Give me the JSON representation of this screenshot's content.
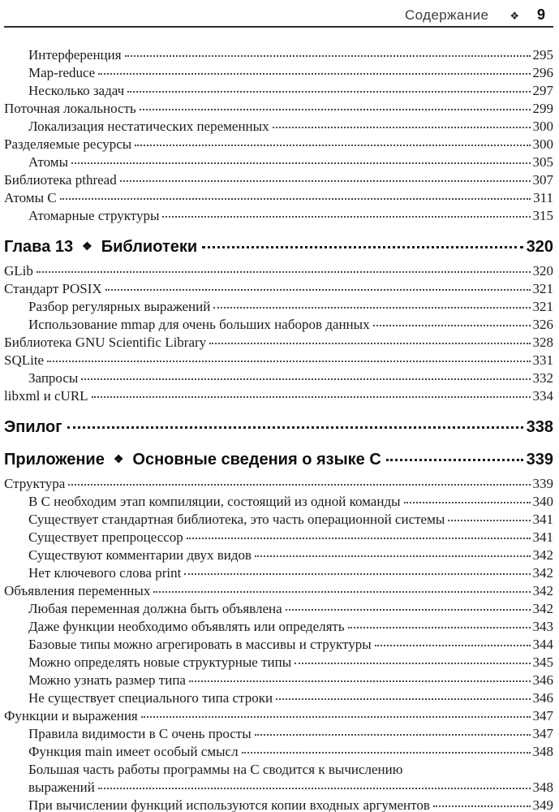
{
  "header": {
    "title": "Содержание",
    "diamond": "❖",
    "page_number": "9"
  },
  "colors": {
    "page_background": "#ffffff",
    "text": "#1c1c1c",
    "header_text": "#3d3d3d",
    "rule": "#2b2b2b",
    "dot_leader": "#4a4a4a"
  },
  "toc": {
    "entries": [
      {
        "level": 1,
        "label": "Интерференция",
        "page": "295"
      },
      {
        "level": 1,
        "label": "Map-reduce",
        "page": "296"
      },
      {
        "level": 1,
        "label": "Несколько задач",
        "page": "297"
      },
      {
        "level": 0,
        "label": "Поточная локальность",
        "page": "299"
      },
      {
        "level": 1,
        "label": "Локализация нестатических переменных",
        "page": "300"
      },
      {
        "level": 0,
        "label": "Разделяемые ресурсы",
        "page": "300"
      },
      {
        "level": 1,
        "label": "Атомы",
        "page": "305"
      },
      {
        "level": 0,
        "label": "Библиотека pthread",
        "page": "307"
      },
      {
        "level": 0,
        "label": "Атомы C",
        "page": "311"
      },
      {
        "level": 1,
        "label": "Атомарные структуры",
        "page": "315"
      },
      {
        "type": "chapter",
        "prefix": "Глава 13",
        "diamond": "❖",
        "title": "Библиотеки",
        "page": "320"
      },
      {
        "level": 0,
        "label": "GLib",
        "page": "320"
      },
      {
        "level": 0,
        "label": "Стандарт POSIX",
        "page": "321"
      },
      {
        "level": 1,
        "label": "Разбор регулярных выражений",
        "page": "321"
      },
      {
        "level": 1,
        "label": "Использование mmap для очень больших наборов данных",
        "page": "326"
      },
      {
        "level": 0,
        "label": "Библиотека GNU Scientific Library",
        "page": "328"
      },
      {
        "level": 0,
        "label": "SQLite",
        "page": "331"
      },
      {
        "level": 1,
        "label": "Запросы",
        "page": "332"
      },
      {
        "level": 0,
        "label": "libxml и cURL",
        "page": "334"
      },
      {
        "type": "chapter",
        "prefix": "Эпилог",
        "page": "338"
      },
      {
        "type": "chapter",
        "prefix": "Приложение",
        "diamond": "❖",
        "title": "Основные сведения о языке C",
        "page": "339"
      },
      {
        "level": 0,
        "label": "Структура",
        "page": "339"
      },
      {
        "level": 1,
        "label": "В C необходим этап компиляции, состоящий из одной команды",
        "page": "340"
      },
      {
        "level": 1,
        "label": "Существует стандартная библиотека, это часть операционной системы",
        "page": "341"
      },
      {
        "level": 1,
        "label": "Существует препроцессор",
        "page": "341"
      },
      {
        "level": 1,
        "label": "Существуют комментарии двух видов",
        "page": "342"
      },
      {
        "level": 1,
        "label": "Нет ключевого слова print",
        "page": "342"
      },
      {
        "level": 0,
        "label": "Объявления переменных",
        "page": "342"
      },
      {
        "level": 1,
        "label": "Любая переменная должна быть объявлена",
        "page": "342"
      },
      {
        "level": 1,
        "label": "Даже функции необходимо объявлять или определять",
        "page": "343"
      },
      {
        "level": 1,
        "label": "Базовые типы можно агрегировать в массивы и структуры",
        "page": "344"
      },
      {
        "level": 1,
        "label": "Можно определять новые структурные типы",
        "page": "345"
      },
      {
        "level": 1,
        "label": "Можно узнать размер типа",
        "page": "346"
      },
      {
        "level": 1,
        "label": "Не существует специального типа строки",
        "page": "346"
      },
      {
        "level": 0,
        "label": "Функции и выражения",
        "page": "347"
      },
      {
        "level": 1,
        "label": "Правила видимости в C очень просты",
        "page": "347"
      },
      {
        "level": 1,
        "label": "Функция main имеет особый смысл",
        "page": "348"
      },
      {
        "level": 1,
        "label": "Большая часть работы программы на C сводится к вычислению",
        "page": null
      },
      {
        "level": 1,
        "label": "выражений",
        "page": "348"
      },
      {
        "level": 1,
        "label": "При вычислении функций используются копии входных аргументов",
        "page": "349"
      }
    ]
  }
}
